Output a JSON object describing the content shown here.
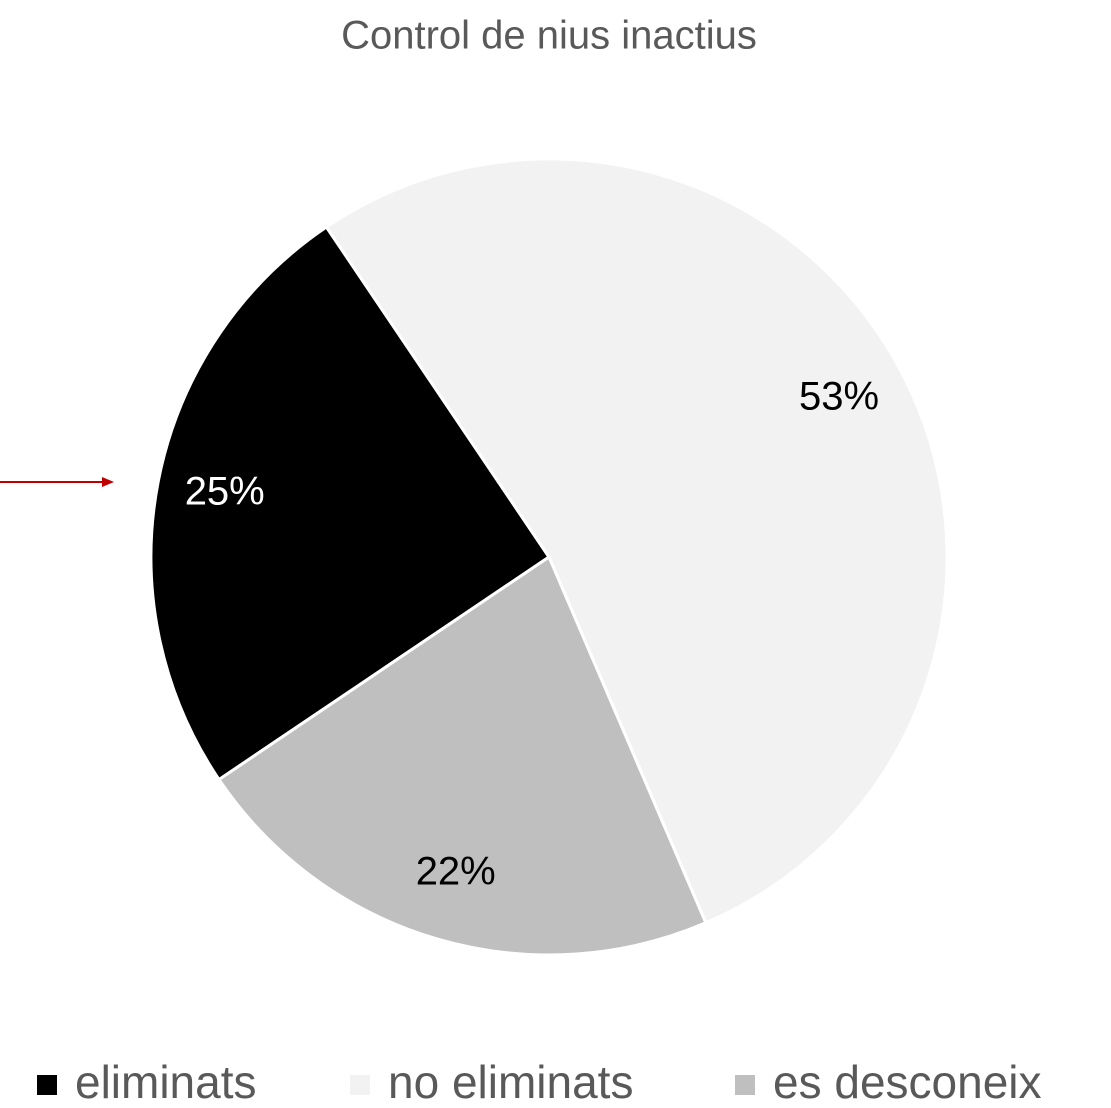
{
  "chart_data": {
    "type": "pie",
    "title": "Control de nius inactius",
    "categories": [
      "eliminats",
      "no eliminats",
      "es desconeix"
    ],
    "values": [
      25,
      53,
      22
    ],
    "value_labels": [
      "25%",
      "53%",
      "22%"
    ],
    "colors": [
      "#000000",
      "#f2f2f2",
      "#bfbfbf"
    ],
    "legend": "bottom"
  }
}
